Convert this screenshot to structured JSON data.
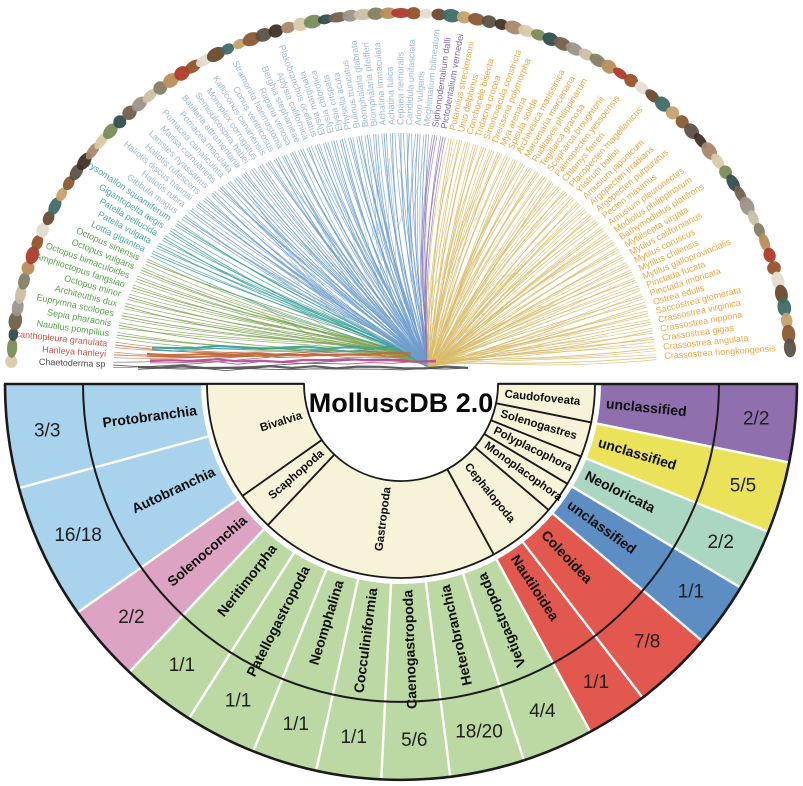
{
  "title": "MolluscDB 2.0",
  "chart_data": [
    {
      "type": "pie",
      "name": "taxonomy-fan",
      "title": "MolluscDB 2.0",
      "layout": {
        "shape": "semicircle-sunburst",
        "opens": "down",
        "rings": [
          "class",
          "subclass",
          "genome-count"
        ]
      },
      "ring_background": "#f6f3d8",
      "inner_ring_classes": [
        {
          "label": "Bivalvia",
          "children": 2
        },
        {
          "label": "Scaphopoda",
          "children": 1
        },
        {
          "label": "Gastropoda",
          "children": 7
        },
        {
          "label": "Cephalopoda",
          "children": 2
        },
        {
          "label": "Monoplacophora",
          "children": 1
        },
        {
          "label": "Polyplacophora",
          "children": 1
        },
        {
          "label": "Solenogastres",
          "children": 1
        },
        {
          "label": "Caudofoveata",
          "children": 1
        }
      ],
      "segments": [
        {
          "label": "Protobranchia",
          "count": "3/3",
          "color": "#a9d2ec",
          "span_deg": 16
        },
        {
          "label": "Autobranchia",
          "count": "16/18",
          "color": "#a9d2ec",
          "span_deg": 21
        },
        {
          "label": "Solenoconchia",
          "count": "2/2",
          "color": "#dca4c2",
          "span_deg": 12
        },
        {
          "label": "Neritimorpha",
          "count": "1/1",
          "color": "#bdd9a3",
          "span_deg": 11.5
        },
        {
          "label": "Patellogastropoda",
          "count": "1/1",
          "color": "#bdd9a3",
          "span_deg": 11
        },
        {
          "label": "Neomphalina",
          "count": "1/1",
          "color": "#bdd9a3",
          "span_deg": 10
        },
        {
          "label": "Cocculiniformia",
          "count": "1/1",
          "color": "#bdd9a3",
          "span_deg": 10
        },
        {
          "label": "Caenogastropoda",
          "count": "5/6",
          "color": "#bdd9a3",
          "span_deg": 10.5
        },
        {
          "label": "Heterobranchia",
          "count": "18/20",
          "color": "#bdd9a3",
          "span_deg": 11.5
        },
        {
          "label": "Vetigastropoda",
          "count": "4/4",
          "color": "#bdd9a3",
          "span_deg": 11
        },
        {
          "label": "Nautiloidea",
          "count": "1/1",
          "color": "#e2574e",
          "span_deg": 9.5
        },
        {
          "label": "Coleoidea",
          "count": "7/8",
          "color": "#e2574e",
          "span_deg": 12.5
        },
        {
          "label": "unclassified",
          "count": "1/1",
          "color": "#5d8ec3",
          "span_deg": 10
        },
        {
          "label": "Neoloricata",
          "count": "2/2",
          "color": "#abd7c2",
          "span_deg": 9.5
        },
        {
          "label": "unclassified",
          "count": "5/5",
          "color": "#eae35a",
          "span_deg": 11
        },
        {
          "label": "unclassified",
          "count": "2/2",
          "color": "#8f6fae",
          "span_deg": 12
        }
      ]
    },
    {
      "type": "table",
      "name": "phylogenetic-tree-species",
      "description": "circular phylogeny, tips ordered bottom-left counterclockwise over top to bottom-right",
      "groups": [
        {
          "group": "caudofoveata",
          "label_color": "#4a4a4a",
          "line_color": "#555555",
          "species": [
            "Chaetoderma sp"
          ]
        },
        {
          "group": "polyplacophora",
          "label_color": "#cb5442",
          "line_color": "#c06a3b",
          "species": [
            "Hanleya hanleyi",
            "Acanthopleura granulata"
          ]
        },
        {
          "group": "cephalopoda",
          "label_color": "#55a34a",
          "line_color": "#7da450",
          "species": [
            "Nautilus pompilius",
            "Sepia pharaonis",
            "Euprymna scolopes",
            "Architeuthis dux",
            "Octopus minor",
            "Amphioctopus fangsiao",
            "Octopus bimaculoides",
            "Octopus vulgaris",
            "Octopus sinensis"
          ]
        },
        {
          "group": "gastropoda-basal",
          "label_color": "#4fa9a3",
          "line_color": "#3da19c",
          "species": [
            "Lottia gigantea",
            "Patella vulgata",
            "Patella pellucida",
            "Gigantopelta aegis",
            "Chrysomallon squamiferum"
          ]
        },
        {
          "group": "gastropoda",
          "label_color": "#9bb9da",
          "line_color": "#6f9ecb",
          "species": [
            "Gibbula magus",
            "Haliotis rubra",
            "Haliotis discus hannai",
            "Haliotis rufescens",
            "Lanistes nyassanus",
            "Marisa cornuarietis",
            "Pomacea canaliculata",
            "Pomacea maculata",
            "Batillaria attramentaria",
            "Semisulcospira habei",
            "Monoplex corrugatus",
            "Kalloconus canariensis",
            "Conus ventricosus",
            "Stramonita haemastoma",
            "Rapana venosa",
            "Berghia stephanieae",
            "Aplysia californica",
            "Plakobranchus ocellatus",
            "Elysia marginata",
            "Elysia chlorotica",
            "Elysia crispata",
            "Physella acuta",
            "Bulinus truncatus",
            "Biomphalaria glabrata",
            "Biomphalaria pfeifferi",
            "Achatina immaculata",
            "Achatina fulica",
            "Cepaea nemoralis",
            "Candidula unifasciata",
            "Arion vulgaris",
            "Meghimatium bilineatum"
          ]
        },
        {
          "group": "scaphopoda",
          "label_color": "#8165ab",
          "line_color": "#9173b5",
          "species": [
            "Siphonodentalium dalli",
            "Pictodentalium vernedei"
          ]
        },
        {
          "group": "bivalvia",
          "label_color": "#f0a53e",
          "line_color": "#d9bc6a",
          "species": [
            "Potamilus streckersoni",
            "Unio delphinus",
            "Conchocele bisecta",
            "Tridacna crocea",
            "Sinonovacula constricta",
            "Dreissena polymorpha",
            "Mya arenaria",
            "Spisula solida",
            "Archivesica marissinica",
            "Mercenaria mercenaria",
            "Ruditapes philippinarum",
            "Tegillarca granosa",
            "Scapharca broughtonii",
            "Patinopecten yessoensis",
            "Chlamys farreri",
            "Placopecten magellanicus",
            "Ylistrum balloti",
            "Amusium japonicum",
            "Argopecten irradians",
            "Argopecten purpuratus",
            "Pecten maximus",
            "Amusium pleuronectes",
            "Modiolus philippinarum",
            "Bathymodiolus platifrons",
            "Mytilisepta virgata",
            "Mytilus californianus",
            "Mytilus coruscus",
            "Mytilus chilensis",
            "Mytilus galloprovincialis",
            "Pinctada fucata",
            "Pinctada imbricata",
            "Ostrea edulis",
            "Saccostrea glomerata",
            "Crassostrea virginica",
            "Crassostrea nippona",
            "Crassostrea gigas",
            "Crassostrea angulata",
            "Crassostrea hongkongensis"
          ]
        }
      ]
    }
  ]
}
